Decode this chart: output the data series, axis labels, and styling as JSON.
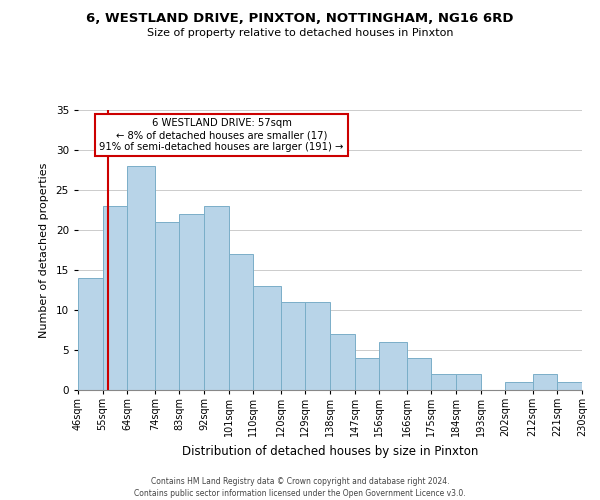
{
  "title": "6, WESTLAND DRIVE, PINXTON, NOTTINGHAM, NG16 6RD",
  "subtitle": "Size of property relative to detached houses in Pinxton",
  "xlabel": "Distribution of detached houses by size in Pinxton",
  "ylabel": "Number of detached properties",
  "footer_line1": "Contains HM Land Registry data © Crown copyright and database right 2024.",
  "footer_line2": "Contains public sector information licensed under the Open Government Licence v3.0.",
  "bar_labels": [
    "46sqm",
    "55sqm",
    "64sqm",
    "74sqm",
    "83sqm",
    "92sqm",
    "101sqm",
    "110sqm",
    "120sqm",
    "129sqm",
    "138sqm",
    "147sqm",
    "156sqm",
    "166sqm",
    "175sqm",
    "184sqm",
    "193sqm",
    "202sqm",
    "212sqm",
    "221sqm",
    "230sqm"
  ],
  "bar_values": [
    14,
    23,
    28,
    21,
    22,
    23,
    17,
    13,
    11,
    11,
    7,
    4,
    6,
    4,
    2,
    2,
    0,
    1,
    2,
    1,
    0
  ],
  "bin_edges": [
    46,
    55,
    64,
    74,
    83,
    92,
    101,
    110,
    120,
    129,
    138,
    147,
    156,
    166,
    175,
    184,
    193,
    202,
    212,
    221,
    230
  ],
  "bar_color": "#b8d4e8",
  "bar_edge_color": "#7aaec8",
  "ylim": [
    0,
    35
  ],
  "yticks": [
    0,
    5,
    10,
    15,
    20,
    25,
    30,
    35
  ],
  "annotation_box_text_line1": "6 WESTLAND DRIVE: 57sqm",
  "annotation_box_text_line2": "← 8% of detached houses are smaller (17)",
  "annotation_box_text_line3": "91% of semi-detached houses are larger (191) →",
  "redline_x": 57,
  "annotation_box_color": "#ffffff",
  "annotation_box_edge_color": "#cc0000",
  "redline_color": "#cc0000",
  "background_color": "#ffffff",
  "grid_color": "#cccccc"
}
